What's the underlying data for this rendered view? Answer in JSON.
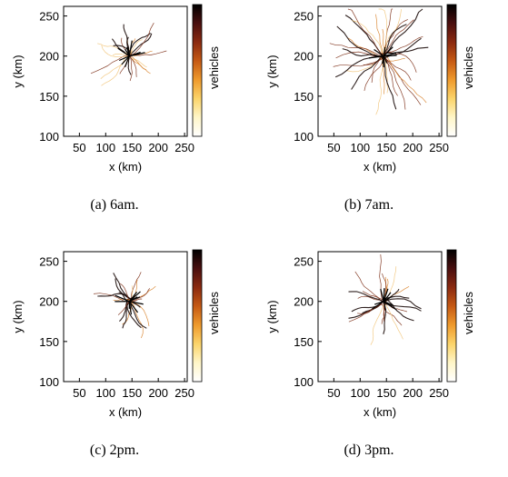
{
  "figure": {
    "colorbar_label": "vehicles",
    "colormap": [
      "#000000",
      "#4a0f0f",
      "#8b2a10",
      "#c65a14",
      "#ef9a2c",
      "#fbd46a",
      "#fff6c8",
      "#ffffff"
    ]
  },
  "chart_data": [
    {
      "type": "heatmap",
      "caption": "(a) 6am.",
      "xlabel": "x (km)",
      "ylabel": "y (km)",
      "xlim": [
        20,
        255
      ],
      "ylim": [
        100,
        262
      ],
      "xticks": [
        50,
        100,
        150,
        200,
        250
      ],
      "yticks": [
        100,
        150,
        200,
        250
      ],
      "center": [
        145,
        200
      ],
      "spread": 1.0,
      "colorbar_label": "vehicles"
    },
    {
      "type": "heatmap",
      "caption": "(b) 7am.",
      "xlabel": "x (km)",
      "ylabel": "y (km)",
      "xlim": [
        20,
        255
      ],
      "ylim": [
        100,
        262
      ],
      "xticks": [
        50,
        100,
        150,
        200,
        250
      ],
      "yticks": [
        100,
        150,
        200,
        250
      ],
      "center": [
        145,
        200
      ],
      "spread": 1.45,
      "colorbar_label": "vehicles"
    },
    {
      "type": "heatmap",
      "caption": "(c) 2pm.",
      "xlabel": "x (km)",
      "ylabel": "y (km)",
      "xlim": [
        20,
        255
      ],
      "ylim": [
        100,
        262
      ],
      "xticks": [
        50,
        100,
        150,
        200,
        250
      ],
      "yticks": [
        100,
        150,
        200,
        250
      ],
      "center": [
        145,
        200
      ],
      "spread": 0.85,
      "colorbar_label": "vehicles"
    },
    {
      "type": "heatmap",
      "caption": "(d) 3pm.",
      "xlabel": "x (km)",
      "ylabel": "y (km)",
      "xlim": [
        20,
        255
      ],
      "ylim": [
        100,
        262
      ],
      "xticks": [
        50,
        100,
        150,
        200,
        250
      ],
      "yticks": [
        100,
        150,
        200,
        250
      ],
      "center": [
        145,
        200
      ],
      "spread": 1.05,
      "colorbar_label": "vehicles"
    }
  ]
}
